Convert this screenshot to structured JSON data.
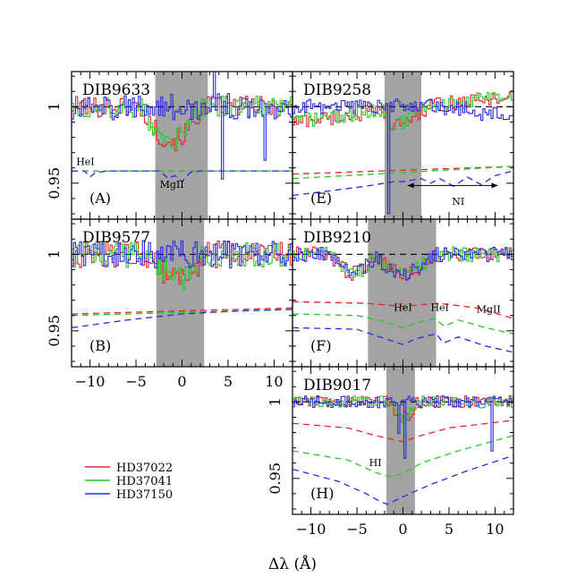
{
  "figure": {
    "xlabel": "Δλ (Å)",
    "ylabel_ticks": [
      "1",
      "0.95"
    ]
  },
  "legend": [
    {
      "label": "HD37022",
      "color": "#e8242a"
    },
    {
      "label": "HD37041",
      "color": "#22cc22"
    },
    {
      "label": "HD37150",
      "color": "#2a2ae6"
    }
  ],
  "chart_data": [
    {
      "type": "line",
      "id": "A",
      "title": "DIB9633",
      "panel_label": "(A)",
      "xlim": [
        -12,
        12
      ],
      "ylim": [
        0.9265,
        1.023
      ],
      "xticks": [
        -10,
        -5,
        0,
        5,
        10
      ],
      "yticks": [
        1,
        0.95
      ],
      "shade": [
        -2.9,
        2.8
      ],
      "annotations": [
        {
          "text": "HeI",
          "x": -10.5,
          "y": 0.962
        },
        {
          "text": "MgII",
          "x": -1.1,
          "y": 0.947
        }
      ],
      "model_lines": {
        "HD37022": [
          [
            -12,
            0.958
          ],
          [
            12,
            0.958
          ]
        ],
        "HD37041": [
          [
            -12,
            0.958
          ],
          [
            12,
            0.958
          ]
        ],
        "HD37150": [
          [
            -12,
            0.958
          ],
          [
            -10.6,
            0.958
          ],
          [
            -10,
            0.954
          ],
          [
            -9.4,
            0.957
          ],
          [
            -8,
            0.958
          ],
          [
            -2.4,
            0.958
          ],
          [
            -1.5,
            0.953
          ],
          [
            -0.8,
            0.955
          ],
          [
            0,
            0.951
          ],
          [
            0.9,
            0.957
          ],
          [
            2,
            0.958
          ],
          [
            12,
            0.958
          ]
        ]
      },
      "spectra_profile": {
        "noise": 0.007,
        "dips": [
          [
            -1.2,
            3.4,
            0.022,
            "rg"
          ]
        ],
        "spikes": [
          [
            3.5,
            0.03
          ],
          [
            4.2,
            -0.05
          ],
          [
            8.8,
            -0.04
          ]
        ]
      }
    },
    {
      "type": "line",
      "id": "E",
      "title": "DIB9258",
      "panel_label": "(E)",
      "xlim": [
        -12,
        12
      ],
      "ylim": [
        0.9265,
        1.023
      ],
      "xticks": [
        -10,
        -5,
        0,
        5,
        10
      ],
      "yticks": [
        1,
        0.95
      ],
      "shade": [
        -2.0,
        2.0
      ],
      "annotations": [
        {
          "text": "NI",
          "x": 6.0,
          "y": 0.936
        }
      ],
      "arrow": {
        "x1": 0.5,
        "x2": 10.3,
        "y": 0.9485
      },
      "model_lines": {
        "HD37022": [
          [
            -12,
            0.956
          ],
          [
            12,
            0.961
          ]
        ],
        "HD37041": [
          [
            -12,
            0.953
          ],
          [
            12,
            0.961
          ]
        ],
        "HD37150": [
          [
            -12,
            0.942
          ],
          [
            -8,
            0.945
          ],
          [
            -4,
            0.948
          ],
          [
            -1,
            0.951
          ],
          [
            0,
            0.951
          ],
          [
            2,
            0.953
          ],
          [
            3,
            0.95
          ],
          [
            4,
            0.953
          ],
          [
            5.5,
            0.948
          ],
          [
            7,
            0.954
          ],
          [
            8.5,
            0.949
          ],
          [
            10,
            0.955
          ],
          [
            12,
            0.958
          ]
        ]
      },
      "spectra_profile": {
        "noise": 0.005,
        "step": {
          "x": -1.6,
          "low": 0.93
        },
        "trend": "up"
      }
    },
    {
      "type": "line",
      "id": "B",
      "title": "DIB9577",
      "panel_label": "(B)",
      "xlim": [
        -12,
        12
      ],
      "ylim": [
        0.9265,
        1.023
      ],
      "xticks": [
        -10,
        -5,
        0,
        5,
        10
      ],
      "yticks": [
        1,
        0.95
      ],
      "shade": [
        -2.8,
        2.4
      ],
      "model_lines": {
        "HD37022": [
          [
            -12,
            0.961
          ],
          [
            0,
            0.963
          ],
          [
            12,
            0.965
          ]
        ],
        "HD37041": [
          [
            -12,
            0.96
          ],
          [
            0,
            0.962
          ],
          [
            12,
            0.964
          ]
        ],
        "HD37150": [
          [
            -12,
            0.952
          ],
          [
            -6,
            0.957
          ],
          [
            0,
            0.961
          ],
          [
            6,
            0.963
          ],
          [
            12,
            0.964
          ]
        ]
      },
      "spectra_profile": {
        "noise": 0.009,
        "dips": [
          [
            -0.5,
            3.0,
            0.015,
            "rg"
          ]
        ]
      }
    },
    {
      "type": "line",
      "id": "F",
      "title": "DIB9210",
      "panel_label": "(F)",
      "xlim": [
        -12,
        12
      ],
      "ylim": [
        0.9265,
        1.023
      ],
      "xticks": [
        -10,
        -5,
        0,
        5,
        10
      ],
      "yticks": [
        1,
        0.95
      ],
      "shade": [
        -3.8,
        3.6
      ],
      "annotations": [
        {
          "text": "HeI",
          "x": 0,
          "y": 0.963
        },
        {
          "text": "HeI",
          "x": 4.0,
          "y": 0.963
        },
        {
          "text": "MgII",
          "x": 9.3,
          "y": 0.962
        }
      ],
      "model_lines": {
        "HD37022": [
          [
            -12,
            0.969
          ],
          [
            -4,
            0.968
          ],
          [
            0,
            0.966
          ],
          [
            3.8,
            0.968
          ],
          [
            8,
            0.965
          ],
          [
            12,
            0.958
          ]
        ],
        "HD37041": [
          [
            -12,
            0.961
          ],
          [
            -5,
            0.96
          ],
          [
            -2,
            0.956
          ],
          [
            0,
            0.952
          ],
          [
            1.5,
            0.955
          ],
          [
            3.4,
            0.958
          ],
          [
            4.5,
            0.953
          ],
          [
            6,
            0.957
          ],
          [
            9,
            0.952
          ],
          [
            12,
            0.948
          ]
        ],
        "HD37150": [
          [
            -12,
            0.952
          ],
          [
            -5,
            0.951
          ],
          [
            -2,
            0.945
          ],
          [
            0,
            0.941
          ],
          [
            1.5,
            0.945
          ],
          [
            3.6,
            0.948
          ],
          [
            4.4,
            0.942
          ],
          [
            6,
            0.946
          ],
          [
            9,
            0.94
          ],
          [
            12,
            0.936
          ]
        ]
      },
      "spectra_profile": {
        "noise": 0.005,
        "dips": [
          [
            -5.5,
            2.5,
            0.012,
            "rgb"
          ],
          [
            0,
            3.5,
            0.012,
            "rgb"
          ]
        ]
      }
    },
    {
      "type": "line",
      "id": "H",
      "title": "DIB9017",
      "panel_label": "(H)",
      "xlim": [
        -12,
        12
      ],
      "ylim": [
        0.9265,
        1.023
      ],
      "xticks": [
        -10,
        -5,
        0,
        5,
        10
      ],
      "yticks": [
        1,
        0.95
      ],
      "shade": [
        -1.8,
        1.3
      ],
      "annotations": [
        {
          "text": "HI",
          "x": -3.0,
          "y": 0.958
        }
      ],
      "model_lines": {
        "HD37022": [
          [
            -12,
            0.986
          ],
          [
            -6,
            0.983
          ],
          [
            -3,
            0.978
          ],
          [
            -1.5,
            0.976
          ],
          [
            0,
            0.974
          ],
          [
            2,
            0.978
          ],
          [
            5,
            0.983
          ],
          [
            12,
            0.988
          ]
        ],
        "HD37041": [
          [
            -12,
            0.968
          ],
          [
            -6,
            0.962
          ],
          [
            -3,
            0.954
          ],
          [
            -1.5,
            0.951
          ],
          [
            0,
            0.953
          ],
          [
            2,
            0.96
          ],
          [
            6,
            0.968
          ],
          [
            12,
            0.978
          ]
        ],
        "HD37150": [
          [
            -12,
            0.956
          ],
          [
            -7,
            0.948
          ],
          [
            -4,
            0.94
          ],
          [
            -2.5,
            0.935
          ],
          [
            -1.7,
            0.933
          ],
          [
            0,
            0.938
          ],
          [
            3,
            0.946
          ],
          [
            7,
            0.955
          ],
          [
            12,
            0.965
          ]
        ]
      },
      "spectra_profile": {
        "noise": 0.004,
        "dips": [
          [
            0,
            1.5,
            0.01,
            "rg"
          ]
        ],
        "spikes": [
          [
            0.2,
            -0.04
          ],
          [
            -0.6,
            -0.02
          ],
          [
            9.5,
            -0.03
          ]
        ]
      }
    }
  ]
}
